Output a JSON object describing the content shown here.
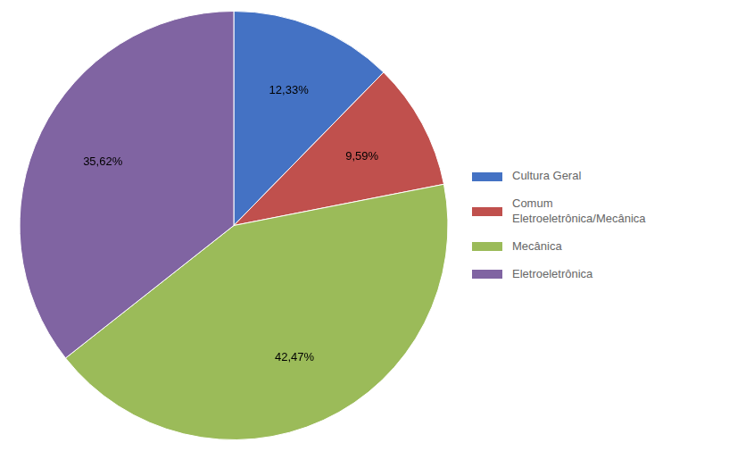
{
  "chart_data": {
    "type": "pie",
    "categories": [
      "Cultura Geral",
      "Comum\nEletroeletrônica/Mecânica",
      "Mecânica",
      "Eletroeletrônica"
    ],
    "values": [
      12.33,
      9.59,
      42.47,
      35.62
    ],
    "value_labels": [
      "12,33%",
      "9,59%",
      "42,47%",
      "35,62%"
    ],
    "colors": [
      "#4472C4",
      "#C0504D",
      "#9BBB59",
      "#8064A2"
    ],
    "data_labels": true,
    "legend": "right"
  }
}
